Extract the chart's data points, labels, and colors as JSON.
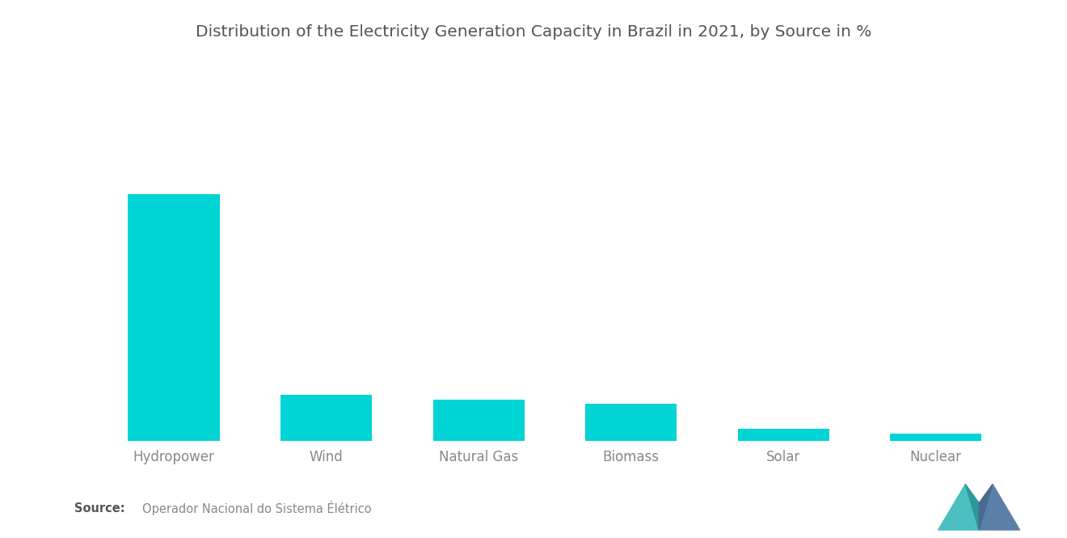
{
  "title": "Distribution of the Electricity Generation Capacity in Brazil in 2021, by Source in %",
  "categories": [
    "Hydropower",
    "Wind",
    "Natural Gas",
    "Biomass",
    "Solar",
    "Nuclear"
  ],
  "values": [
    60.9,
    11.4,
    10.3,
    9.3,
    3.0,
    1.9
  ],
  "bar_color": "#00D4D4",
  "background_color": "#ffffff",
  "title_color": "#555555",
  "label_color": "#888888",
  "source_bold": "Source:",
  "source_text": "Operador Nacional do Sistema Élétrico",
  "title_fontsize": 14.5,
  "label_fontsize": 12,
  "source_fontsize": 10.5
}
